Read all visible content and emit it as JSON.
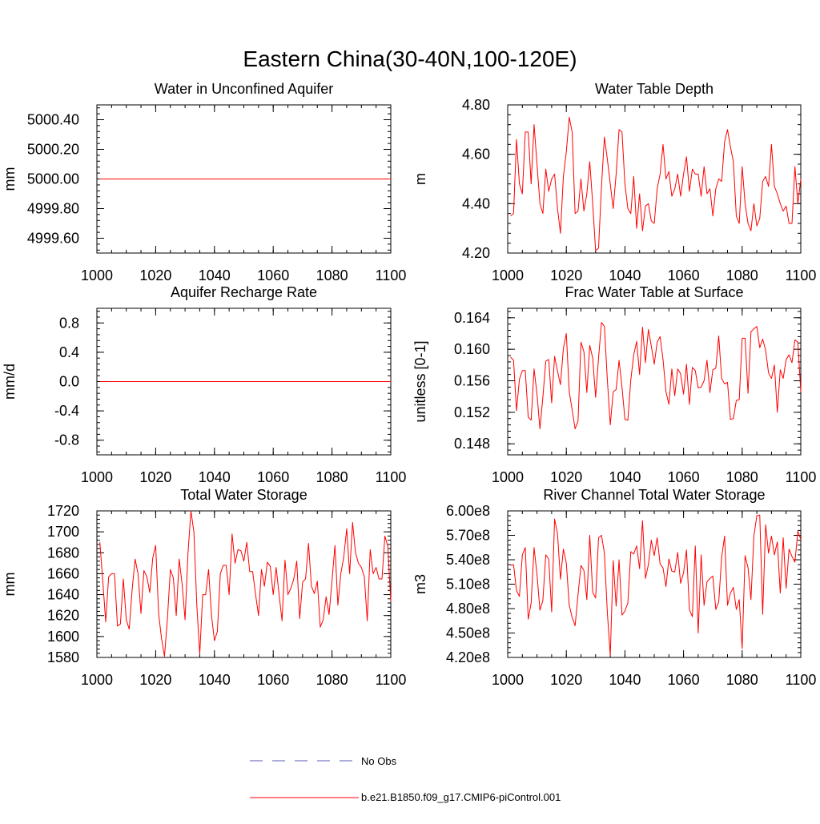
{
  "figure": {
    "title": "Eastern China(30-40N,100-120E)"
  },
  "legend": {
    "obs_label": "No Obs",
    "model_label": "b.e21.B1850.f09_g17.CMIP6-piControl.001",
    "obs_color": "#5a5ab4",
    "model_color": "#ff0000"
  },
  "chart_data": [
    {
      "type": "line",
      "title": "Water in Unconfined Aquifer",
      "ylabel": "mm",
      "xlabel": "",
      "xlim": [
        1000,
        1100
      ],
      "ylim": [
        4999.5,
        5000.5
      ],
      "xticks": [
        1000,
        1020,
        1040,
        1060,
        1080,
        1100
      ],
      "xtick_labels": [
        "1000",
        "1020",
        "1040",
        "1060",
        "1080",
        "1100"
      ],
      "yticks": [
        4999.6,
        4999.8,
        5000.0,
        5000.2,
        5000.4
      ],
      "ytick_labels": [
        "4999.60",
        "4999.80",
        "5000.00",
        "5000.20",
        "5000.40"
      ],
      "series": [
        {
          "name": "b.e21.B1850.f09_g17.CMIP6-piControl.001",
          "color": "#ff0000",
          "x_start": 1001,
          "x_step": 1,
          "values": [
            5000,
            5000,
            5000,
            5000,
            5000,
            5000,
            5000,
            5000,
            5000,
            5000,
            5000,
            5000,
            5000,
            5000,
            5000,
            5000,
            5000,
            5000,
            5000,
            5000,
            5000,
            5000,
            5000,
            5000,
            5000,
            5000,
            5000,
            5000,
            5000,
            5000,
            5000,
            5000,
            5000,
            5000,
            5000,
            5000,
            5000,
            5000,
            5000,
            5000,
            5000,
            5000,
            5000,
            5000,
            5000,
            5000,
            5000,
            5000,
            5000,
            5000,
            5000,
            5000,
            5000,
            5000,
            5000,
            5000,
            5000,
            5000,
            5000,
            5000,
            5000,
            5000,
            5000,
            5000,
            5000,
            5000,
            5000,
            5000,
            5000,
            5000,
            5000,
            5000,
            5000,
            5000,
            5000,
            5000,
            5000,
            5000,
            5000,
            5000,
            5000,
            5000,
            5000,
            5000,
            5000,
            5000,
            5000,
            5000,
            5000,
            5000,
            5000,
            5000,
            5000,
            5000,
            5000,
            5000,
            5000,
            5000,
            5000,
            5000
          ]
        }
      ]
    },
    {
      "type": "line",
      "title": "Water Table Depth",
      "ylabel": "m",
      "xlabel": "",
      "xlim": [
        1000,
        1100
      ],
      "ylim": [
        4.2,
        4.8
      ],
      "xticks": [
        1000,
        1020,
        1040,
        1060,
        1080,
        1100
      ],
      "xtick_labels": [
        "1000",
        "1020",
        "1040",
        "1060",
        "1080",
        "1100"
      ],
      "yticks": [
        4.2,
        4.4,
        4.6,
        4.8
      ],
      "ytick_labels": [
        "4.20",
        "4.40",
        "4.60",
        "4.80"
      ],
      "series": [
        {
          "name": "b.e21.B1850.f09_g17.CMIP6-piControl.001",
          "color": "#ff0000",
          "x_start": 1001,
          "x_step": 1,
          "values": [
            4.35,
            4.36,
            4.66,
            4.48,
            4.44,
            4.69,
            4.69,
            4.48,
            4.72,
            4.56,
            4.4,
            4.36,
            4.54,
            4.45,
            4.5,
            4.52,
            4.38,
            4.28,
            4.51,
            4.61,
            4.75,
            4.69,
            4.36,
            4.37,
            4.5,
            4.37,
            4.44,
            4.57,
            4.4,
            4.21,
            4.22,
            4.47,
            4.67,
            4.58,
            4.48,
            4.38,
            4.52,
            4.7,
            4.69,
            4.48,
            4.38,
            4.36,
            4.51,
            4.3,
            4.44,
            4.29,
            4.39,
            4.4,
            4.33,
            4.32,
            4.46,
            4.52,
            4.64,
            4.5,
            4.53,
            4.43,
            4.46,
            4.52,
            4.43,
            4.52,
            4.59,
            4.45,
            4.54,
            4.52,
            4.52,
            4.43,
            4.55,
            4.44,
            4.46,
            4.35,
            4.46,
            4.5,
            4.49,
            4.65,
            4.7,
            4.63,
            4.57,
            4.35,
            4.32,
            4.55,
            4.4,
            4.32,
            4.29,
            4.4,
            4.31,
            4.34,
            4.49,
            4.51,
            4.47,
            4.64,
            4.47,
            4.44,
            4.4,
            4.37,
            4.39,
            4.32,
            4.32,
            4.55,
            4.4,
            4.5
          ]
        }
      ]
    },
    {
      "type": "line",
      "title": "Aquifer Recharge Rate",
      "ylabel": "mm/d",
      "xlabel": "",
      "xlim": [
        1000,
        1100
      ],
      "ylim": [
        -1.0,
        1.0
      ],
      "xticks": [
        1000,
        1020,
        1040,
        1060,
        1080,
        1100
      ],
      "xtick_labels": [
        "1000",
        "1020",
        "1040",
        "1060",
        "1080",
        "1100"
      ],
      "yticks": [
        -0.8,
        -0.4,
        0.0,
        0.4,
        0.8
      ],
      "ytick_labels": [
        "-0.8",
        "-0.4",
        "0.0",
        "0.4",
        "0.8"
      ],
      "series": [
        {
          "name": "b.e21.B1850.f09_g17.CMIP6-piControl.001",
          "color": "#ff0000",
          "x_start": 1001,
          "x_step": 1,
          "values": [
            0,
            0,
            0,
            0,
            0,
            0,
            0,
            0,
            0,
            0,
            0,
            0,
            0,
            0,
            0,
            0,
            0,
            0,
            0,
            0,
            0,
            0,
            0,
            0,
            0,
            0,
            0,
            0,
            0,
            0,
            0,
            0,
            0,
            0,
            0,
            0,
            0,
            0,
            0,
            0,
            0,
            0,
            0,
            0,
            0,
            0,
            0,
            0,
            0,
            0,
            0,
            0,
            0,
            0,
            0,
            0,
            0,
            0,
            0,
            0,
            0,
            0,
            0,
            0,
            0,
            0,
            0,
            0,
            0,
            0,
            0,
            0,
            0,
            0,
            0,
            0,
            0,
            0,
            0,
            0,
            0,
            0,
            0,
            0,
            0,
            0,
            0,
            0,
            0,
            0,
            0,
            0,
            0,
            0,
            0,
            0,
            0,
            0,
            0,
            0
          ]
        }
      ]
    },
    {
      "type": "line",
      "title": "Frac Water Table at Surface",
      "ylabel": "unitless [0-1]",
      "xlabel": "",
      "xlim": [
        1000,
        1100
      ],
      "ylim": [
        0.1466,
        0.1652
      ],
      "xticks": [
        1000,
        1020,
        1040,
        1060,
        1080,
        1100
      ],
      "xtick_labels": [
        "1000",
        "1020",
        "1040",
        "1060",
        "1080",
        "1100"
      ],
      "yticks": [
        0.148,
        0.152,
        0.156,
        0.16,
        0.164
      ],
      "ytick_labels": [
        "0.148",
        "0.152",
        "0.156",
        "0.160",
        "0.164"
      ],
      "series": [
        {
          "name": "b.e21.B1850.f09_g17.CMIP6-piControl.001",
          "color": "#ff0000",
          "x_start": 1001,
          "x_step": 1,
          "values": [
            0.159,
            0.1586,
            0.1522,
            0.1562,
            0.1573,
            0.1573,
            0.1514,
            0.151,
            0.1575,
            0.1543,
            0.1499,
            0.1539,
            0.1585,
            0.1587,
            0.1532,
            0.1591,
            0.1572,
            0.1555,
            0.1601,
            0.162,
            0.1546,
            0.1523,
            0.1499,
            0.1509,
            0.1609,
            0.1597,
            0.1545,
            0.1605,
            0.1589,
            0.1539,
            0.1589,
            0.1634,
            0.1629,
            0.1561,
            0.1504,
            0.1546,
            0.1549,
            0.1586,
            0.1552,
            0.1511,
            0.151,
            0.1561,
            0.1593,
            0.161,
            0.1568,
            0.1628,
            0.1583,
            0.1625,
            0.1604,
            0.1581,
            0.1609,
            0.1616,
            0.1587,
            0.1546,
            0.153,
            0.1575,
            0.1541,
            0.1575,
            0.1569,
            0.1543,
            0.1581,
            0.153,
            0.1577,
            0.1573,
            0.1551,
            0.1552,
            0.156,
            0.1586,
            0.1545,
            0.1574,
            0.1576,
            0.1617,
            0.1563,
            0.1556,
            0.1558,
            0.1511,
            0.1512,
            0.1535,
            0.1536,
            0.1614,
            0.1614,
            0.1544,
            0.1622,
            0.1626,
            0.1629,
            0.1602,
            0.1613,
            0.1599,
            0.157,
            0.1563,
            0.158,
            0.152,
            0.1574,
            0.1563,
            0.1587,
            0.1593,
            0.1583,
            0.1612,
            0.1609,
            0.1546
          ]
        }
      ]
    },
    {
      "type": "line",
      "title": "Total Water Storage",
      "ylabel": "mm",
      "xlabel": "",
      "xlim": [
        1000,
        1100
      ],
      "ylim": [
        1580,
        1720
      ],
      "xticks": [
        1000,
        1020,
        1040,
        1060,
        1080,
        1100
      ],
      "xtick_labels": [
        "1000",
        "1020",
        "1040",
        "1060",
        "1080",
        "1100"
      ],
      "yticks": [
        1580,
        1600,
        1620,
        1640,
        1660,
        1680,
        1700,
        1720
      ],
      "ytick_labels": [
        "1580",
        "1600",
        "1620",
        "1640",
        "1660",
        "1680",
        "1700",
        "1720"
      ],
      "series": [
        {
          "name": "b.e21.B1850.f09_g17.CMIP6-piControl.001",
          "color": "#ff0000",
          "x_start": 1001,
          "x_step": 1,
          "values": [
            1690,
            1653,
            1614,
            1657,
            1660,
            1660,
            1610,
            1612,
            1655,
            1616,
            1607,
            1645,
            1674,
            1660,
            1622,
            1663,
            1657,
            1642,
            1675,
            1687,
            1622,
            1598,
            1581,
            1617,
            1664,
            1656,
            1620,
            1674,
            1650,
            1616,
            1680,
            1720,
            1700,
            1630,
            1583,
            1640,
            1640,
            1664,
            1620,
            1596,
            1605,
            1660,
            1668,
            1668,
            1640,
            1698,
            1670,
            1683,
            1682,
            1672,
            1690,
            1662,
            1662,
            1640,
            1620,
            1664,
            1648,
            1671,
            1667,
            1640,
            1666,
            1640,
            1615,
            1673,
            1640,
            1646,
            1655,
            1672,
            1617,
            1652,
            1655,
            1689,
            1648,
            1641,
            1653,
            1609,
            1616,
            1638,
            1621,
            1653,
            1687,
            1630,
            1660,
            1676,
            1703,
            1660,
            1709,
            1680,
            1670,
            1666,
            1657,
            1615,
            1683,
            1660,
            1666,
            1655,
            1655,
            1696,
            1686,
            1633
          ]
        }
      ]
    },
    {
      "type": "line",
      "title": "River Channel Total Water Storage",
      "ylabel": "m3",
      "xlabel": "",
      "xlim": [
        1000,
        1100
      ],
      "ylim": [
        420000000,
        600000000
      ],
      "xticks": [
        1000,
        1020,
        1040,
        1060,
        1080,
        1100
      ],
      "xtick_labels": [
        "1000",
        "1020",
        "1040",
        "1060",
        "1080",
        "1100"
      ],
      "yticks": [
        420000000,
        450000000,
        480000000,
        510000000,
        540000000,
        570000000,
        600000000
      ],
      "ytick_labels": [
        "4.20e8",
        "4.50e8",
        "4.80e8",
        "5.10e8",
        "5.40e8",
        "5.70e8",
        "6.00e8"
      ],
      "series": [
        {
          "name": "b.e21.B1850.f09_g17.CMIP6-piControl.001",
          "color": "#ff0000",
          "x_start": 1001,
          "x_step": 1,
          "values": [
            533000000,
            534000000,
            502000000,
            495000000,
            546000000,
            555000000,
            467000000,
            487000000,
            555000000,
            522000000,
            478000000,
            490000000,
            546000000,
            541000000,
            476000000,
            590000000,
            572000000,
            516000000,
            553000000,
            536000000,
            484000000,
            469000000,
            459000000,
            497000000,
            533000000,
            527000000,
            491000000,
            570000000,
            500000000,
            493000000,
            567000000,
            570000000,
            548000000,
            475000000,
            422000000,
            539000000,
            483000000,
            540000000,
            472000000,
            477000000,
            487000000,
            550000000,
            547000000,
            557000000,
            529000000,
            588000000,
            517000000,
            534000000,
            564000000,
            545000000,
            567000000,
            535000000,
            530000000,
            507000000,
            541000000,
            526000000,
            525000000,
            549000000,
            511000000,
            524000000,
            552000000,
            479000000,
            470000000,
            557000000,
            450000000,
            546000000,
            484000000,
            513000000,
            517000000,
            520000000,
            479000000,
            488000000,
            543000000,
            569000000,
            484000000,
            499000000,
            506000000,
            479000000,
            491000000,
            431000000,
            545000000,
            530000000,
            491000000,
            569000000,
            594000000,
            595000000,
            473000000,
            583000000,
            548000000,
            569000000,
            546000000,
            562000000,
            499000000,
            567000000,
            505000000,
            553000000,
            544000000,
            537000000,
            575000000,
            565000000
          ]
        }
      ]
    }
  ]
}
